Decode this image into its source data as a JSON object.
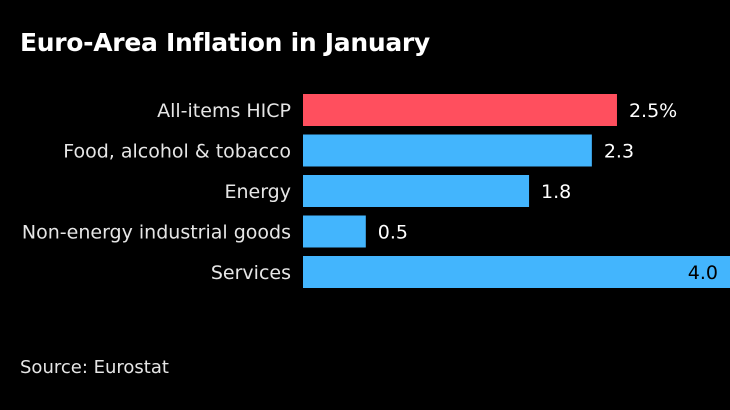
{
  "title": "Euro-Area Inflation in January",
  "source": "Source: Eurostat",
  "colors": {
    "background": "#000000",
    "highlight": "#ff4f5e",
    "bar": "#43b5fd",
    "text": "#ffffff"
  },
  "chart_data": {
    "type": "bar",
    "orientation": "horizontal",
    "title": "Euro-Area Inflation in January",
    "categories": [
      "All-items HICP",
      "Food, alcohol & tobacco",
      "Energy",
      "Non-energy industrial goods",
      "Services"
    ],
    "values": [
      2.5,
      2.3,
      1.8,
      0.5,
      4.0
    ],
    "value_labels": [
      "2.5%",
      "2.3",
      "1.8",
      "0.5",
      "4.0"
    ],
    "xlim": [
      0,
      3.4
    ],
    "highlight_index": 0,
    "grid": false,
    "legend": "none"
  }
}
